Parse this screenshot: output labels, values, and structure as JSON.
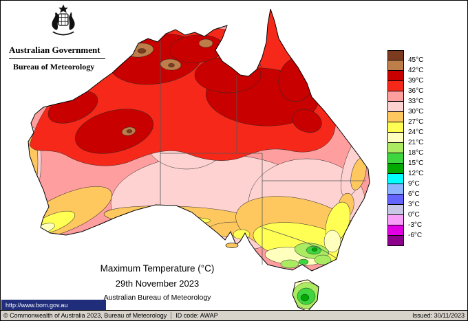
{
  "header": {
    "government": "Australian Government",
    "bureau": "Bureau of Meteorology"
  },
  "map_title": {
    "title": "Maximum Temperature (°C)",
    "date": "29th November 2023",
    "org": "Australian Bureau of Meteorology"
  },
  "legend": {
    "entries": [
      {
        "label": "45°C",
        "color": "#7C3A1E"
      },
      {
        "label": "42°C",
        "color": "#BE7E4A"
      },
      {
        "label": "39°C",
        "color": "#C80000"
      },
      {
        "label": "36°C",
        "color": "#F5281A"
      },
      {
        "label": "33°C",
        "color": "#FF9E9E"
      },
      {
        "label": "30°C",
        "color": "#FFD2D2"
      },
      {
        "label": "27°C",
        "color": "#FFC85F"
      },
      {
        "label": "24°C",
        "color": "#FFFF54"
      },
      {
        "label": "21°C",
        "color": "#FFFFBE"
      },
      {
        "label": "18°C",
        "color": "#ABEB61"
      },
      {
        "label": "15°C",
        "color": "#3ED63E"
      },
      {
        "label": "12°C",
        "color": "#00A900"
      },
      {
        "label": "9°C",
        "color": "#00FFFF"
      },
      {
        "label": "6°C",
        "color": "#8CB4FF"
      },
      {
        "label": "3°C",
        "color": "#6464FF"
      },
      {
        "label": "0°C",
        "color": "#C8C8E6"
      },
      {
        "label": "-3°C",
        "color": "#F8A0F8"
      },
      {
        "label": "-6°C",
        "color": "#E100E1"
      },
      {
        "label": "",
        "color": "#8C008C"
      }
    ]
  },
  "footer": {
    "url": "http://www.bom.gov.au",
    "copyright": "© Commonwealth of Australia 2023, Bureau of Meteorology",
    "id_code": "ID code: AWAP",
    "issued": "Issued: 30/11/2023"
  }
}
